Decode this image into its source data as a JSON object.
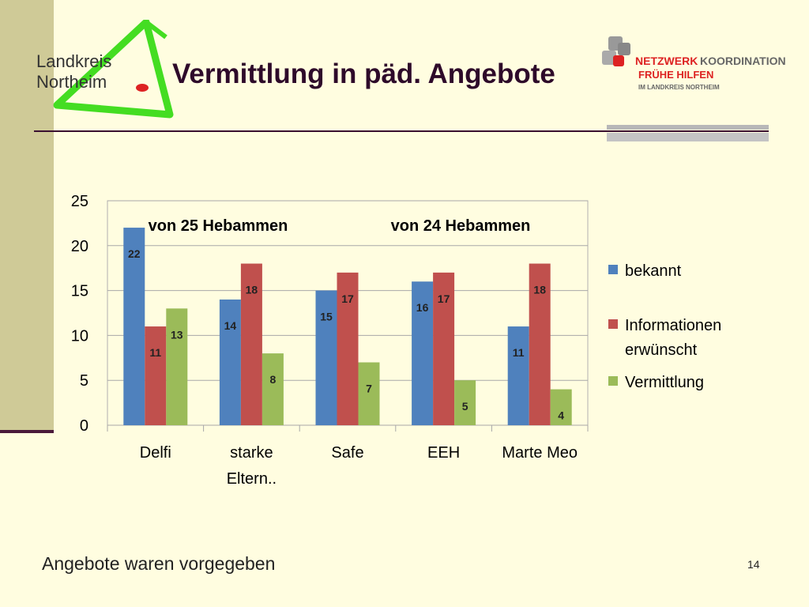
{
  "slide": {
    "title": "Vermittlung in päd. Angebote",
    "footer": "Angebote waren vorgegeben",
    "page_number": "14"
  },
  "logo_left": {
    "line1": "Landkreis",
    "line2": "Northeim",
    "colors": {
      "green": "#44dd22",
      "red": "#dd2222",
      "text": "#333333"
    }
  },
  "logo_right": {
    "line1a": "NETZWERK",
    "line1b": "KOORDINATION",
    "line2": "FRÜHE HILFEN",
    "line3": "IM LANDKREIS NORTHEIM",
    "colors": {
      "red": "#dd2222",
      "grey": "#777777"
    }
  },
  "colors": {
    "background": "#fffde0",
    "bekannt": "#4f81bd",
    "informationen": "#c0504d",
    "vermittlung": "#9bbb59"
  },
  "chart_data": {
    "type": "bar",
    "categories": [
      "Delfi",
      "starke Eltern..",
      "Safe",
      "EEH",
      "Marte Meo"
    ],
    "category_lines": [
      [
        "Delfi"
      ],
      [
        "starke",
        "Eltern.."
      ],
      [
        "Safe"
      ],
      [
        "EEH"
      ],
      [
        "Marte Meo"
      ]
    ],
    "series": [
      {
        "name": "bekannt",
        "values": [
          22,
          14,
          15,
          16,
          11
        ],
        "color": "#4f81bd"
      },
      {
        "name": "Informationen erwünscht",
        "name_lines": [
          "Informationen",
          "erwünscht"
        ],
        "values": [
          11,
          18,
          17,
          17,
          18
        ],
        "color": "#c0504d"
      },
      {
        "name": "Vermittlung",
        "values": [
          13,
          8,
          7,
          5,
          4
        ],
        "color": "#9bbb59"
      }
    ],
    "ylim": [
      0,
      25
    ],
    "yticks": [
      0,
      5,
      10,
      15,
      20,
      25
    ],
    "grid": true,
    "legend": "right",
    "annotations": [
      "von 25 Hebammen",
      "von 24 Hebammen"
    ],
    "title": "",
    "xlabel": "",
    "ylabel": ""
  }
}
